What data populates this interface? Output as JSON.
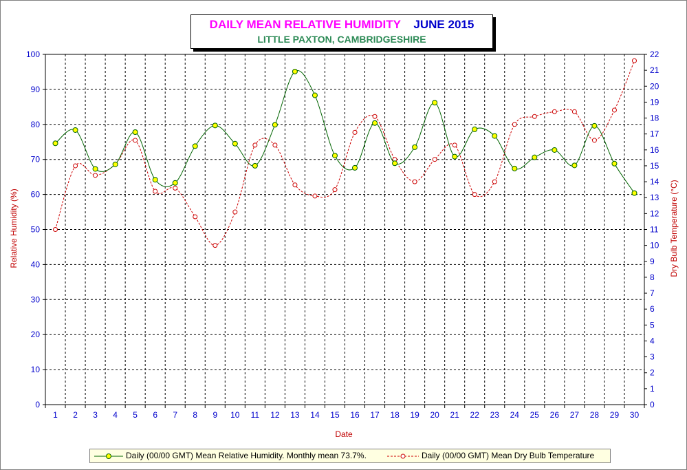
{
  "title": {
    "main": "DAILY MEAN RELATIVE HUMIDITY",
    "month": "JUNE 2015",
    "subtitle": "LITTLE PAXTON, CAMBRIDGESHIRE"
  },
  "colors": {
    "humidity_line": "#006400",
    "humidity_marker": "#ffff00",
    "temperature_line": "#cc0000",
    "left_axis_text": "#0000cc",
    "right_axis_text": "#0000cc",
    "axis_title": "#c00000",
    "grid": "#000000",
    "legend_background": "#ffffe1"
  },
  "chart_data": {
    "type": "line",
    "xlabel": "Date",
    "ylabel": "Relative Humidity (%)",
    "y2label": "Dry Bulb Temperature (°C)",
    "ylim": [
      0,
      100
    ],
    "y2lim": [
      0,
      22
    ],
    "yticks": [
      0,
      10,
      20,
      30,
      40,
      50,
      60,
      70,
      80,
      90,
      100
    ],
    "y2ticks": [
      0,
      1,
      2,
      3,
      4,
      5,
      6,
      7,
      8,
      9,
      10,
      11,
      12,
      13,
      14,
      15,
      16,
      17,
      18,
      19,
      20,
      21,
      22
    ],
    "x": [
      1,
      2,
      3,
      4,
      5,
      6,
      7,
      8,
      9,
      10,
      11,
      12,
      13,
      14,
      15,
      16,
      17,
      18,
      19,
      20,
      21,
      22,
      23,
      24,
      25,
      26,
      27,
      28,
      29,
      30
    ],
    "grid": true,
    "legend_position": "bottom",
    "series": [
      {
        "name": "Daily (00/00 GMT) Mean Relative Humidity. Monthly mean 73.7%.",
        "axis": "left",
        "style": "solid line, yellow circle markers",
        "values": [
          74.6,
          78.4,
          67.3,
          68.6,
          77.8,
          64.2,
          63.3,
          73.8,
          79.7,
          74.5,
          68.2,
          79.9,
          95.1,
          88.3,
          71.1,
          67.6,
          80.4,
          68.9,
          73.5,
          86.2,
          70.8,
          78.6,
          76.7,
          67.4,
          70.6,
          72.7,
          68.3,
          79.6,
          68.8,
          60.4
        ]
      },
      {
        "name": "Daily (00/00 GMT) Mean Dry Bulb Temperature",
        "axis": "right",
        "style": "dashed line, hollow circle markers",
        "values": [
          11.0,
          15.0,
          14.4,
          15.1,
          16.6,
          13.4,
          13.6,
          11.8,
          10.0,
          12.1,
          16.3,
          16.3,
          13.8,
          13.1,
          13.5,
          17.1,
          18.1,
          15.4,
          14.0,
          15.4,
          16.3,
          13.2,
          14.0,
          17.6,
          18.1,
          18.4,
          18.4,
          16.6,
          18.5,
          21.6
        ]
      }
    ]
  }
}
